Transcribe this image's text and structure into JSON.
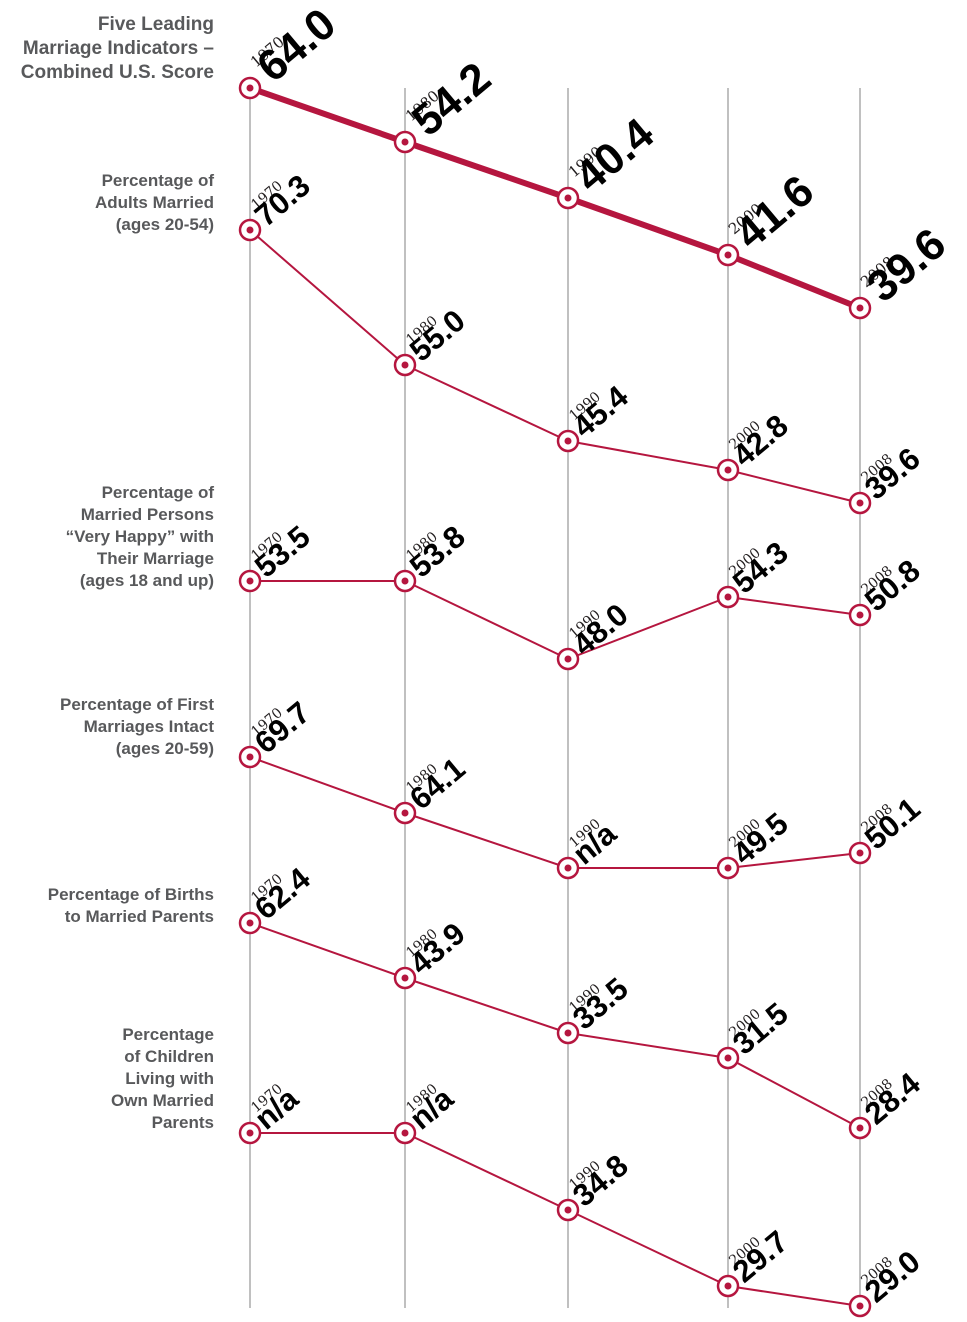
{
  "chart_data": {
    "type": "line",
    "years": [
      "1970",
      "1980",
      "1990",
      "2000",
      "2008"
    ],
    "accent_color": "#b5163f",
    "gridline_color": "#808080",
    "series": [
      {
        "name": "Five Leading\nMarriage Indicators –\nCombined U.S. Score",
        "values": [
          64.0,
          54.2,
          40.4,
          41.6,
          39.6
        ],
        "labels": [
          "64.0",
          "54.2",
          "40.4",
          "41.6",
          "39.6"
        ],
        "emphasis": true
      },
      {
        "name": "Percentage of\nAdults Married\n(ages 20-54)",
        "values": [
          70.3,
          55.0,
          45.4,
          42.8,
          39.6
        ],
        "labels": [
          "70.3",
          "55.0",
          "45.4",
          "42.8",
          "39.6"
        ]
      },
      {
        "name": "Percentage of\nMarried Persons\n“Very Happy” with\nTheir Marriage\n(ages 18 and up)",
        "values": [
          53.5,
          53.8,
          48.0,
          54.3,
          50.8
        ],
        "labels": [
          "53.5",
          "53.8",
          "48.0",
          "54.3",
          "50.8"
        ]
      },
      {
        "name": "Percentage of First\nMarriages Intact\n(ages 20-59)",
        "values": [
          69.7,
          64.1,
          null,
          49.5,
          50.1
        ],
        "labels": [
          "69.7",
          "64.1",
          "n/a",
          "49.5",
          "50.1"
        ]
      },
      {
        "name": "Percentage of Births\nto Married Parents",
        "values": [
          62.4,
          43.9,
          33.5,
          31.5,
          28.4
        ],
        "labels": [
          "62.4",
          "43.9",
          "33.5",
          "31.5",
          "28.4"
        ]
      },
      {
        "name": "Percentage\nof Children\nLiving with\nOwn Married\nParents",
        "values": [
          null,
          null,
          34.8,
          29.7,
          29.0
        ],
        "labels": [
          "n/a",
          "n/a",
          "34.8",
          "29.7",
          "29.0"
        ]
      }
    ]
  }
}
